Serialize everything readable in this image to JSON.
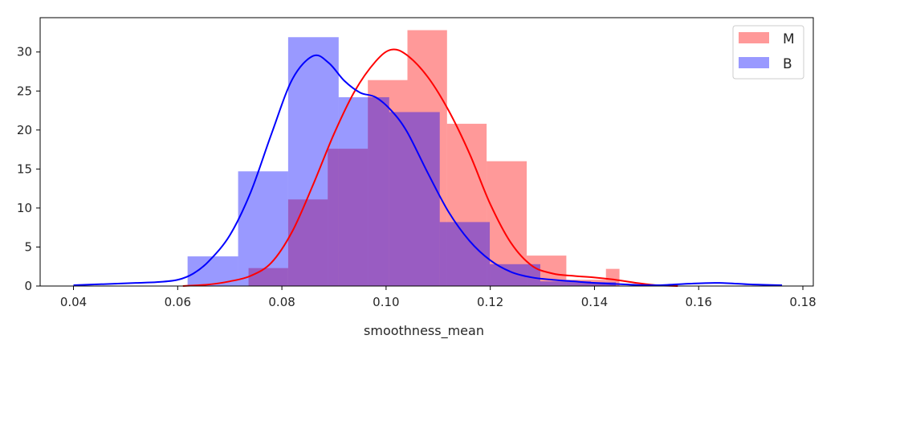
{
  "chart_data": {
    "type": "histogram",
    "xlabel": "smoothness_mean",
    "ylabel": "",
    "xlim": [
      0.0336,
      0.182
    ],
    "ylim": [
      0,
      34.4
    ],
    "xticks": [
      0.04,
      0.06,
      0.08,
      0.1,
      0.12,
      0.14,
      0.16,
      0.18
    ],
    "xtick_labels": [
      "0.04",
      "0.06",
      "0.08",
      "0.10",
      "0.12",
      "0.14",
      "0.16",
      "0.18"
    ],
    "yticks": [
      0,
      5,
      10,
      15,
      20,
      25,
      30
    ],
    "ytick_labels": [
      "0",
      "5",
      "10",
      "15",
      "20",
      "25",
      "30"
    ],
    "grid": false,
    "legend_position": "top-right",
    "legend": [
      {
        "label": "M",
        "color": "#ff9999"
      },
      {
        "label": "B",
        "color": "#9999ff"
      }
    ],
    "series": [
      {
        "name": "M",
        "hist_color": "#ff0000",
        "kde_color": "#ff0000",
        "bins": [
          [
            0.0736,
            0.0812,
            2.3
          ],
          [
            0.0812,
            0.0888,
            11.1
          ],
          [
            0.0888,
            0.0965,
            17.6
          ],
          [
            0.0965,
            0.1041,
            26.4
          ],
          [
            0.1041,
            0.1117,
            32.8
          ],
          [
            0.1117,
            0.1193,
            20.8
          ],
          [
            0.1193,
            0.127,
            16.0
          ],
          [
            0.127,
            0.1346,
            3.9
          ],
          [
            0.1346,
            0.1422,
            0.8
          ],
          [
            0.1422,
            0.1448,
            2.2
          ]
        ],
        "kde": [
          [
            0.061,
            0.0
          ],
          [
            0.066,
            0.2
          ],
          [
            0.07,
            0.6
          ],
          [
            0.074,
            1.3
          ],
          [
            0.078,
            3.0
          ],
          [
            0.082,
            7.0
          ],
          [
            0.086,
            13.0
          ],
          [
            0.09,
            19.5
          ],
          [
            0.094,
            25.0
          ],
          [
            0.098,
            28.8
          ],
          [
            0.101,
            30.3
          ],
          [
            0.104,
            29.6
          ],
          [
            0.108,
            26.8
          ],
          [
            0.112,
            22.5
          ],
          [
            0.116,
            17.0
          ],
          [
            0.12,
            10.5
          ],
          [
            0.124,
            5.5
          ],
          [
            0.128,
            2.6
          ],
          [
            0.132,
            1.6
          ],
          [
            0.136,
            1.3
          ],
          [
            0.14,
            1.1
          ],
          [
            0.144,
            0.8
          ],
          [
            0.148,
            0.4
          ],
          [
            0.152,
            0.1
          ],
          [
            0.156,
            0.0
          ]
        ]
      },
      {
        "name": "B",
        "hist_color": "#0000ff",
        "kde_color": "#0000ff",
        "bins": [
          [
            0.0619,
            0.0716,
            3.8
          ],
          [
            0.0716,
            0.0812,
            14.7
          ],
          [
            0.0812,
            0.0909,
            31.9
          ],
          [
            0.0909,
            0.1006,
            24.2
          ],
          [
            0.1006,
            0.1103,
            22.3
          ],
          [
            0.1103,
            0.1199,
            8.2
          ],
          [
            0.1199,
            0.1296,
            2.8
          ],
          [
            0.1296,
            0.1393,
            0.6
          ],
          [
            0.1393,
            0.1441,
            0.5
          ]
        ],
        "kde": [
          [
            0.04,
            0.1
          ],
          [
            0.044,
            0.2
          ],
          [
            0.048,
            0.3
          ],
          [
            0.052,
            0.4
          ],
          [
            0.056,
            0.5
          ],
          [
            0.06,
            0.8
          ],
          [
            0.063,
            1.6
          ],
          [
            0.066,
            3.2
          ],
          [
            0.07,
            6.5
          ],
          [
            0.074,
            12.0
          ],
          [
            0.078,
            19.5
          ],
          [
            0.082,
            26.5
          ],
          [
            0.086,
            29.5
          ],
          [
            0.089,
            28.6
          ],
          [
            0.092,
            26.3
          ],
          [
            0.095,
            24.8
          ],
          [
            0.098,
            24.2
          ],
          [
            0.101,
            22.5
          ],
          [
            0.104,
            19.8
          ],
          [
            0.108,
            14.5
          ],
          [
            0.112,
            9.5
          ],
          [
            0.116,
            5.8
          ],
          [
            0.12,
            3.3
          ],
          [
            0.124,
            1.8
          ],
          [
            0.128,
            1.1
          ],
          [
            0.132,
            0.8
          ],
          [
            0.136,
            0.6
          ],
          [
            0.14,
            0.4
          ],
          [
            0.146,
            0.2
          ],
          [
            0.152,
            0.1
          ],
          [
            0.158,
            0.3
          ],
          [
            0.164,
            0.4
          ],
          [
            0.17,
            0.2
          ],
          [
            0.176,
            0.1
          ]
        ]
      }
    ]
  }
}
